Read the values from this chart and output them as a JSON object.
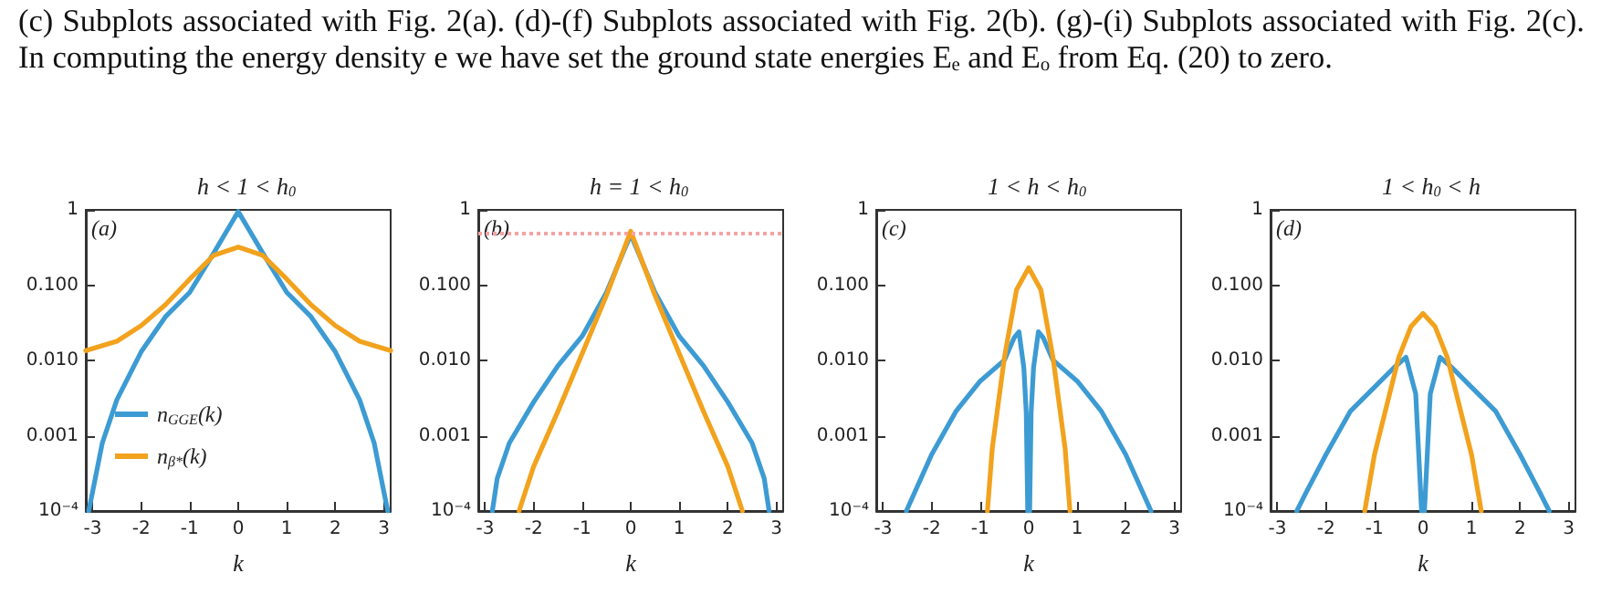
{
  "chart_data": [
    {
      "type": "line",
      "title": "h < 1 < h$_{0}$",
      "xlabel": "k",
      "log": "y",
      "legend": "left",
      "grid": false,
      "annotations": [
        "(a)",
        "(c) Subplots associated with Fig. 2(a). (d)-(f) Subplots associated with Fig. 2(b). (g)-(i) Subplots associated with Fig. 2(c). In computing the energy density e we have set the ground state energies Eₑ and Eₒ from Eq. (20) to zero."
      ],
      "xlim": [
        -3.14,
        3.14
      ],
      "xticks": [
        -3,
        -2,
        -1,
        0,
        1,
        2,
        3
      ],
      "ylim": [
        0.0001,
        1
      ],
      "yticks": [
        {
          "value": 0.0001,
          "label": "10⁻⁴"
        },
        {
          "value": 0.001,
          "label": "0.001"
        },
        {
          "value": 0.01,
          "label": "0.010"
        },
        {
          "value": 0.1,
          "label": "0.100"
        },
        {
          "value": 1,
          "label": "1"
        }
      ],
      "series": [
        {
          "name": "n$_{GGE}$(k)",
          "color": "#3d9bd3",
          "x": [
            -3.08,
            -3,
            -2.8,
            -2.5,
            -2,
            -1.5,
            -1,
            -0.5,
            0,
            0.5,
            1,
            1.5,
            2,
            2.5,
            2.8,
            3,
            3.08
          ],
          "values": [
            0.0001,
            0.00018,
            0.0008,
            0.003,
            0.013,
            0.038,
            0.08,
            0.27,
            0.95,
            0.27,
            0.08,
            0.038,
            0.013,
            0.003,
            0.0008,
            0.00018,
            0.0001
          ]
        },
        {
          "name": "n$_{β*}$(k)",
          "color": "#f2a21d",
          "x": [
            -3.14,
            -2.5,
            -2,
            -1.5,
            -1,
            -0.5,
            0,
            0.5,
            1,
            1.5,
            2,
            2.5,
            3.14
          ],
          "values": [
            0.0135,
            0.018,
            0.029,
            0.055,
            0.12,
            0.25,
            0.32,
            0.25,
            0.12,
            0.055,
            0.029,
            0.018,
            0.0135
          ]
        }
      ]
    },
    {
      "type": "line",
      "title": "h = 1 < h$_{0}$",
      "xlabel": "k",
      "log": "y",
      "legend": false,
      "grid": false,
      "annotations": [
        "(b)"
      ],
      "xlim": [
        -3.14,
        3.14
      ],
      "xticks": [
        -3,
        -2,
        -1,
        0,
        1,
        2,
        3
      ],
      "ylim": [
        0.0001,
        1
      ],
      "yticks": [
        {
          "value": 0.0001,
          "label": "10⁻⁴"
        },
        {
          "value": 0.001,
          "label": "0.001"
        },
        {
          "value": 0.01,
          "label": "0.010"
        },
        {
          "value": 0.1,
          "label": "0.100"
        },
        {
          "value": 1,
          "label": "1"
        }
      ],
      "ref_lines": [
        {
          "axis": "y",
          "value": 0.5,
          "color": "#f4a3a3",
          "line_style": "dotted"
        }
      ],
      "series": [
        {
          "color": "#3d9bd3",
          "x": [
            -2.85,
            -2.75,
            -2.5,
            -2,
            -1.5,
            -1,
            -0.5,
            0,
            0.5,
            1,
            1.5,
            2,
            2.5,
            2.75,
            2.85
          ],
          "values": [
            0.0001,
            0.00027,
            0.0008,
            0.0028,
            0.0085,
            0.021,
            0.08,
            0.47,
            0.08,
            0.021,
            0.0085,
            0.0028,
            0.0008,
            0.00027,
            0.0001
          ]
        },
        {
          "color": "#f2a21d",
          "x": [
            -2.3,
            -2,
            -1.5,
            -1,
            -0.5,
            0,
            0.5,
            1,
            1.5,
            2,
            2.3
          ],
          "values": [
            0.0001,
            0.00039,
            0.0021,
            0.0123,
            0.073,
            0.52,
            0.073,
            0.0123,
            0.0021,
            0.00039,
            0.0001
          ]
        }
      ]
    },
    {
      "type": "line",
      "title": "1 < h < h$_{0}$",
      "xlabel": "k",
      "log": "y",
      "legend": false,
      "grid": false,
      "annotations": [
        "(c)"
      ],
      "xlim": [
        -3.14,
        3.14
      ],
      "xticks": [
        -3,
        -2,
        -1,
        0,
        1,
        2,
        3
      ],
      "ylim": [
        0.0001,
        1
      ],
      "yticks": [
        {
          "value": 0.0001,
          "label": "10⁻⁴"
        },
        {
          "value": 0.001,
          "label": "0.001"
        },
        {
          "value": 0.01,
          "label": "0.010"
        },
        {
          "value": 0.1,
          "label": "0.100"
        },
        {
          "value": 1,
          "label": "1"
        }
      ],
      "series": [
        {
          "color": "#3d9bd3",
          "x": [
            -2.52,
            -2,
            -1.5,
            -1,
            -0.5,
            -0.3,
            -0.2,
            -0.1,
            -0.05,
            -0.02,
            0.02,
            0.05,
            0.1,
            0.2,
            0.3,
            0.5,
            1,
            1.5,
            2,
            2.52
          ],
          "values": [
            0.0001,
            0.00056,
            0.0021,
            0.0053,
            0.0101,
            0.02,
            0.024,
            0.008,
            0.002,
            0.0001,
            0.0001,
            0.002,
            0.008,
            0.024,
            0.02,
            0.0101,
            0.0053,
            0.0021,
            0.00056,
            0.0001
          ]
        },
        {
          "color": "#f2a21d",
          "x": [
            -0.85,
            -0.75,
            -0.5,
            -0.25,
            0,
            0.25,
            0.5,
            0.75,
            0.85
          ],
          "values": [
            0.0001,
            0.00068,
            0.011,
            0.087,
            0.17,
            0.087,
            0.011,
            0.00068,
            0.0001
          ]
        }
      ]
    },
    {
      "type": "line",
      "title": "1 < h$_{0}$ < h",
      "xlabel": "k",
      "log": "y",
      "legend": false,
      "grid": false,
      "annotations": [
        "(d)"
      ],
      "xlim": [
        -3.14,
        3.14
      ],
      "xticks": [
        -3,
        -2,
        -1,
        0,
        1,
        2,
        3
      ],
      "ylim": [
        0.0001,
        1
      ],
      "yticks": [
        {
          "value": 0.0001,
          "label": "10⁻⁴"
        },
        {
          "value": 0.001,
          "label": "0.001"
        },
        {
          "value": 0.01,
          "label": "0.010"
        },
        {
          "value": 0.1,
          "label": "0.100"
        },
        {
          "value": 1,
          "label": "1"
        }
      ],
      "series": [
        {
          "color": "#3d9bd3",
          "x": [
            -2.6,
            -2.4,
            -2,
            -1.5,
            -1,
            -0.6,
            -0.35,
            -0.15,
            -0.03,
            0.03,
            0.15,
            0.35,
            0.6,
            1,
            1.5,
            2,
            2.4,
            2.6
          ],
          "values": [
            0.0001,
            0.00018,
            0.00056,
            0.0021,
            0.0044,
            0.008,
            0.011,
            0.0036,
            0.0001,
            0.0001,
            0.0036,
            0.011,
            0.008,
            0.0044,
            0.0021,
            0.00056,
            0.00018,
            0.0001
          ]
        },
        {
          "color": "#f2a21d",
          "x": [
            -1.2,
            -1,
            -0.5,
            -0.25,
            0,
            0.25,
            0.5,
            1,
            1.2
          ],
          "values": [
            0.0001,
            0.00056,
            0.011,
            0.028,
            0.042,
            0.028,
            0.011,
            0.00056,
            0.0001
          ]
        }
      ]
    }
  ]
}
